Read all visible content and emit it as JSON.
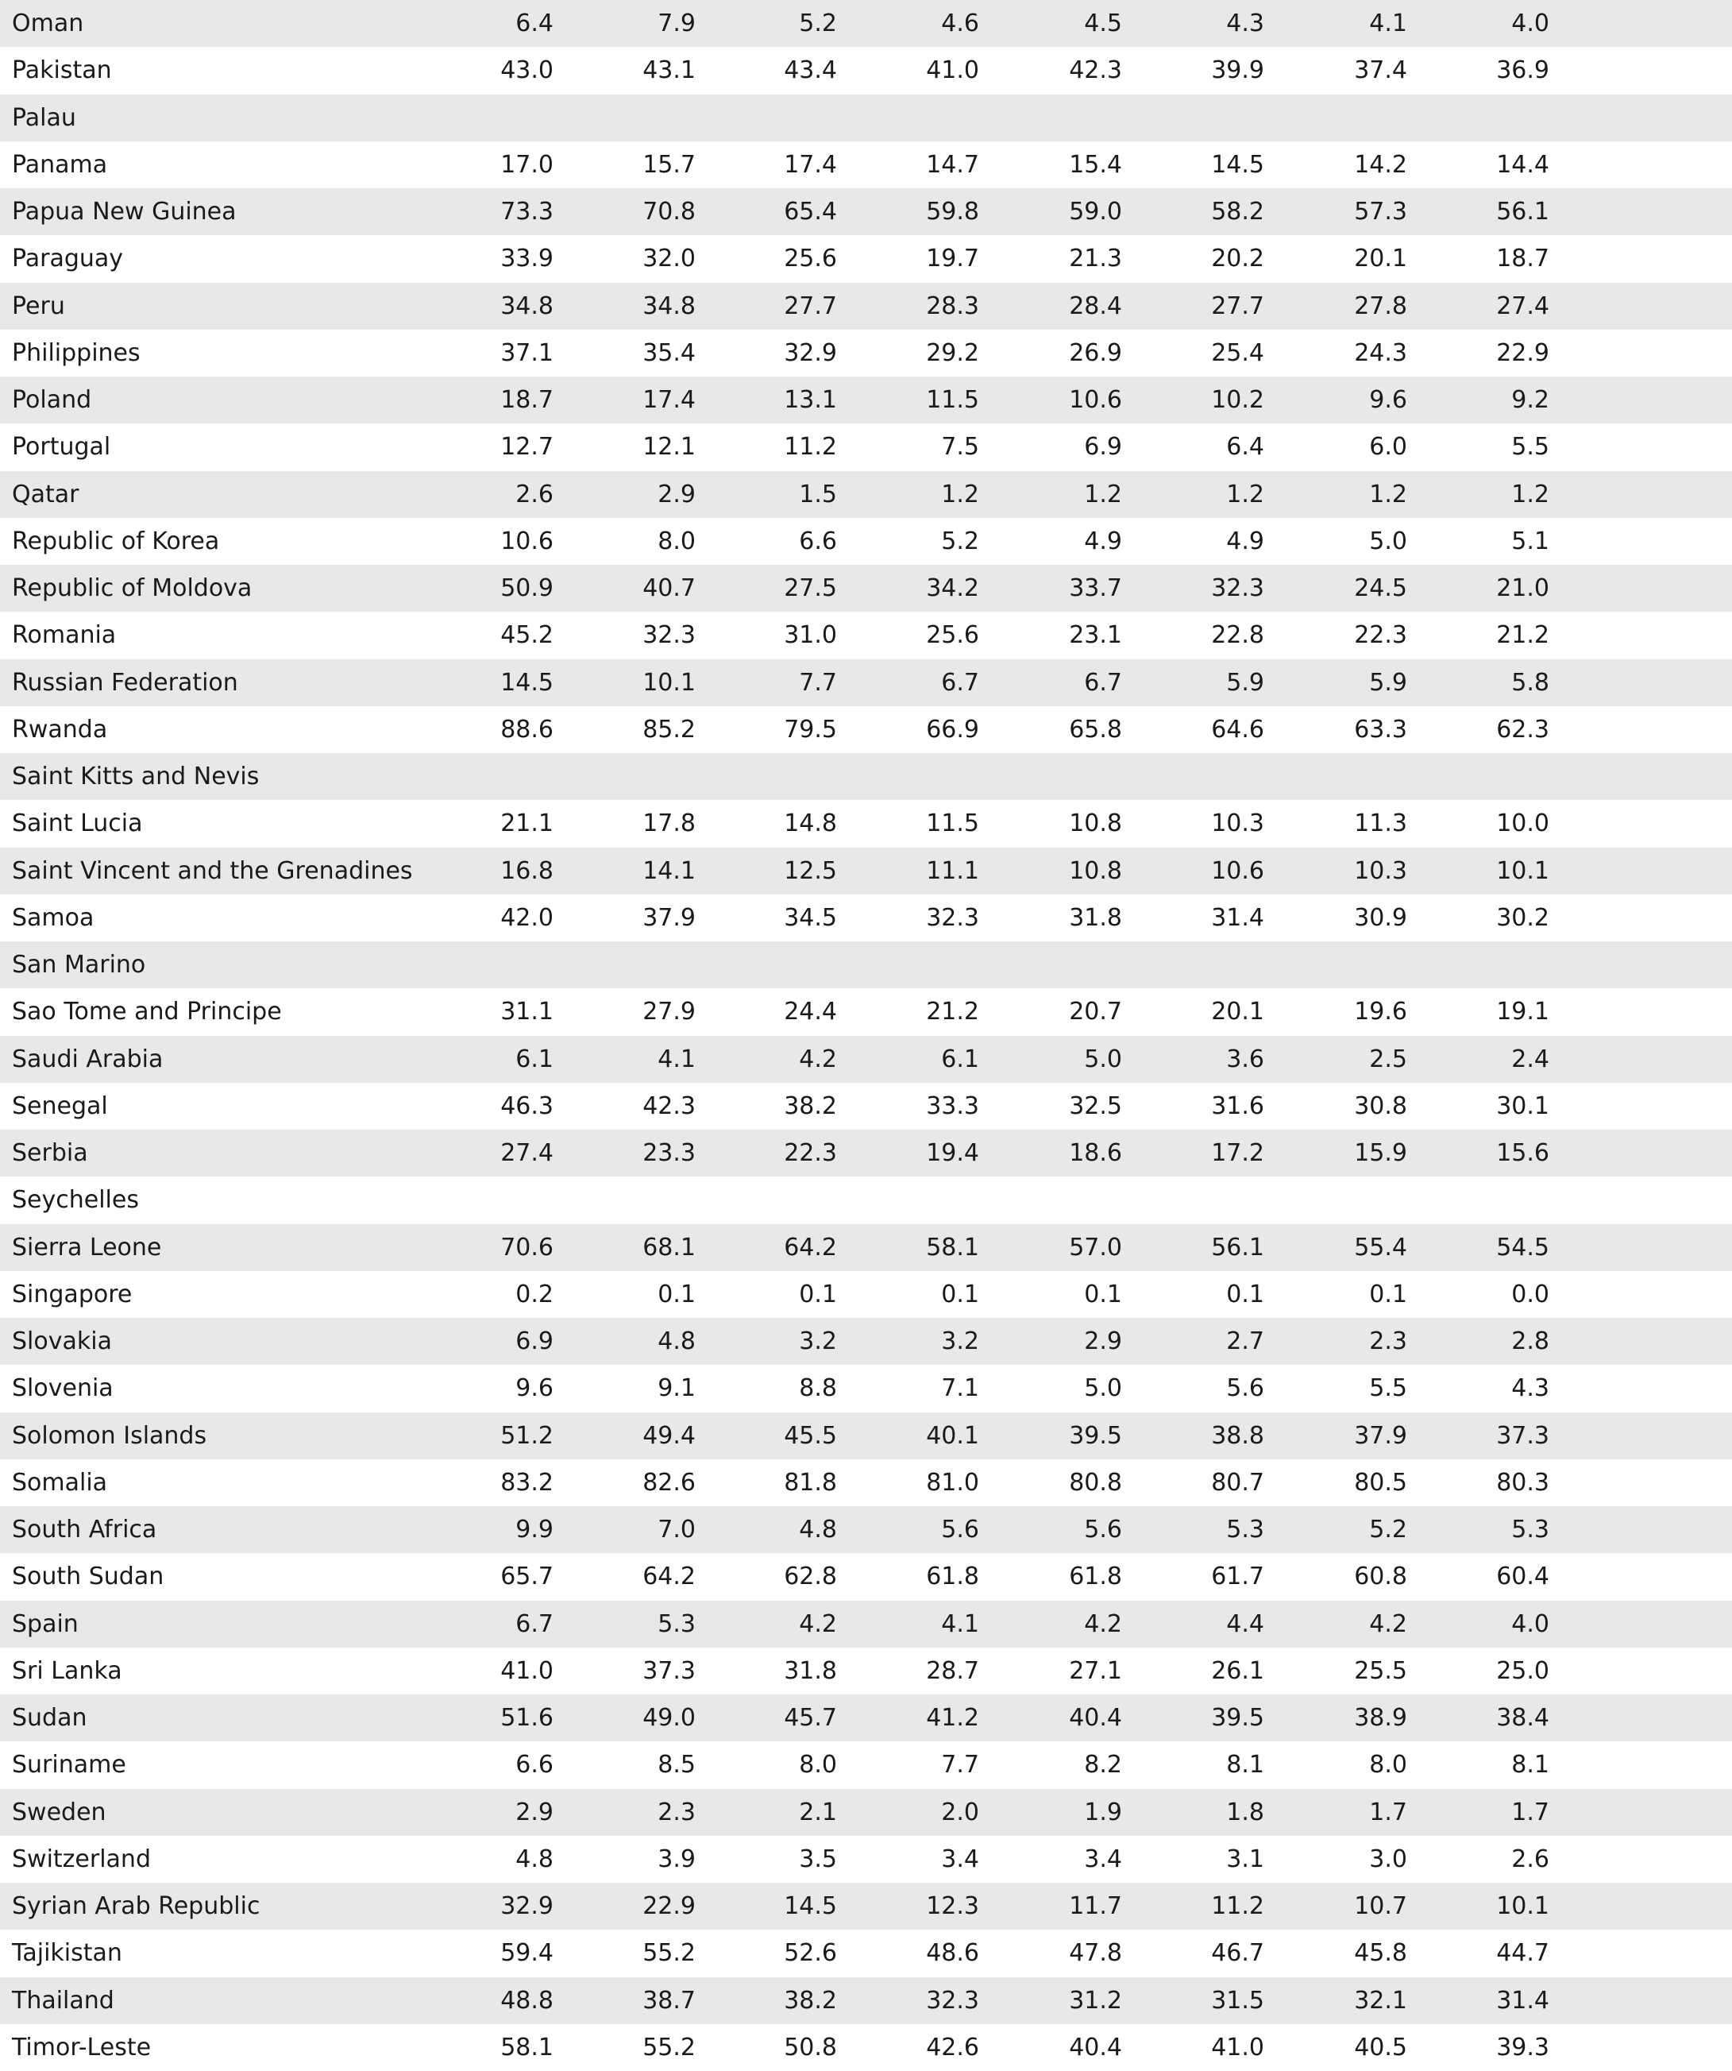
{
  "table": {
    "rows": [
      {
        "country": "Oman",
        "values": [
          "6.4",
          "7.9",
          "5.2",
          "4.6",
          "4.5",
          "4.3",
          "4.1",
          "4.0"
        ]
      },
      {
        "country": "Pakistan",
        "values": [
          "43.0",
          "43.1",
          "43.4",
          "41.0",
          "42.3",
          "39.9",
          "37.4",
          "36.9"
        ]
      },
      {
        "country": "Palau"
      },
      {
        "country": "Panama",
        "values": [
          "17.0",
          "15.7",
          "17.4",
          "14.7",
          "15.4",
          "14.5",
          "14.2",
          "14.4"
        ]
      },
      {
        "country": "Papua New Guinea",
        "values": [
          "73.3",
          "70.8",
          "65.4",
          "59.8",
          "59.0",
          "58.2",
          "57.3",
          "56.1"
        ]
      },
      {
        "country": "Paraguay",
        "values": [
          "33.9",
          "32.0",
          "25.6",
          "19.7",
          "21.3",
          "20.2",
          "20.1",
          "18.7"
        ]
      },
      {
        "country": "Peru",
        "values": [
          "34.8",
          "34.8",
          "27.7",
          "28.3",
          "28.4",
          "27.7",
          "27.8",
          "27.4"
        ]
      },
      {
        "country": "Philippines",
        "values": [
          "37.1",
          "35.4",
          "32.9",
          "29.2",
          "26.9",
          "25.4",
          "24.3",
          "22.9"
        ]
      },
      {
        "country": "Poland",
        "values": [
          "18.7",
          "17.4",
          "13.1",
          "11.5",
          "10.6",
          "10.2",
          "9.6",
          "9.2"
        ]
      },
      {
        "country": "Portugal",
        "values": [
          "12.7",
          "12.1",
          "11.2",
          "7.5",
          "6.9",
          "6.4",
          "6.0",
          "5.5"
        ]
      },
      {
        "country": "Qatar",
        "values": [
          "2.6",
          "2.9",
          "1.5",
          "1.2",
          "1.2",
          "1.2",
          "1.2",
          "1.2"
        ]
      },
      {
        "country": "Republic of Korea",
        "values": [
          "10.6",
          "8.0",
          "6.6",
          "5.2",
          "4.9",
          "4.9",
          "5.0",
          "5.1"
        ]
      },
      {
        "country": "Republic of Moldova",
        "values": [
          "50.9",
          "40.7",
          "27.5",
          "34.2",
          "33.7",
          "32.3",
          "24.5",
          "21.0"
        ]
      },
      {
        "country": "Romania",
        "values": [
          "45.2",
          "32.3",
          "31.0",
          "25.6",
          "23.1",
          "22.8",
          "22.3",
          "21.2"
        ]
      },
      {
        "country": "Russian Federation",
        "values": [
          "14.5",
          "10.1",
          "7.7",
          "6.7",
          "6.7",
          "5.9",
          "5.9",
          "5.8"
        ]
      },
      {
        "country": "Rwanda",
        "values": [
          "88.6",
          "85.2",
          "79.5",
          "66.9",
          "65.8",
          "64.6",
          "63.3",
          "62.3"
        ]
      },
      {
        "country": "Saint Kitts and Nevis"
      },
      {
        "country": "Saint Lucia",
        "values": [
          "21.1",
          "17.8",
          "14.8",
          "11.5",
          "10.8",
          "10.3",
          "11.3",
          "10.0"
        ]
      },
      {
        "country": "Saint Vincent and the Grenadines",
        "values": [
          "16.8",
          "14.1",
          "12.5",
          "11.1",
          "10.8",
          "10.6",
          "10.3",
          "10.1"
        ]
      },
      {
        "country": "Samoa",
        "values": [
          "42.0",
          "37.9",
          "34.5",
          "32.3",
          "31.8",
          "31.4",
          "30.9",
          "30.2"
        ]
      },
      {
        "country": "San Marino"
      },
      {
        "country": "Sao Tome and Principe",
        "values": [
          "31.1",
          "27.9",
          "24.4",
          "21.2",
          "20.7",
          "20.1",
          "19.6",
          "19.1"
        ]
      },
      {
        "country": "Saudi Arabia",
        "values": [
          "6.1",
          "4.1",
          "4.2",
          "6.1",
          "5.0",
          "3.6",
          "2.5",
          "2.4"
        ]
      },
      {
        "country": "Senegal",
        "values": [
          "46.3",
          "42.3",
          "38.2",
          "33.3",
          "32.5",
          "31.6",
          "30.8",
          "30.1"
        ]
      },
      {
        "country": "Serbia",
        "values": [
          "27.4",
          "23.3",
          "22.3",
          "19.4",
          "18.6",
          "17.2",
          "15.9",
          "15.6"
        ]
      },
      {
        "country": "Seychelles"
      },
      {
        "country": "Sierra Leone",
        "values": [
          "70.6",
          "68.1",
          "64.2",
          "58.1",
          "57.0",
          "56.1",
          "55.4",
          "54.5"
        ]
      },
      {
        "country": "Singapore",
        "values": [
          "0.2",
          "0.1",
          "0.1",
          "0.1",
          "0.1",
          "0.1",
          "0.1",
          "0.0"
        ]
      },
      {
        "country": "Slovakia",
        "values": [
          "6.9",
          "4.8",
          "3.2",
          "3.2",
          "2.9",
          "2.7",
          "2.3",
          "2.8"
        ]
      },
      {
        "country": "Slovenia",
        "values": [
          "9.6",
          "9.1",
          "8.8",
          "7.1",
          "5.0",
          "5.6",
          "5.5",
          "4.3"
        ]
      },
      {
        "country": "Solomon Islands",
        "values": [
          "51.2",
          "49.4",
          "45.5",
          "40.1",
          "39.5",
          "38.8",
          "37.9",
          "37.3"
        ]
      },
      {
        "country": "Somalia",
        "values": [
          "83.2",
          "82.6",
          "81.8",
          "81.0",
          "80.8",
          "80.7",
          "80.5",
          "80.3"
        ]
      },
      {
        "country": "South Africa",
        "values": [
          "9.9",
          "7.0",
          "4.8",
          "5.6",
          "5.6",
          "5.3",
          "5.2",
          "5.3"
        ]
      },
      {
        "country": "South Sudan",
        "values": [
          "65.7",
          "64.2",
          "62.8",
          "61.8",
          "61.8",
          "61.7",
          "60.8",
          "60.4"
        ]
      },
      {
        "country": "Spain",
        "values": [
          "6.7",
          "5.3",
          "4.2",
          "4.1",
          "4.2",
          "4.4",
          "4.2",
          "4.0"
        ]
      },
      {
        "country": "Sri Lanka",
        "values": [
          "41.0",
          "37.3",
          "31.8",
          "28.7",
          "27.1",
          "26.1",
          "25.5",
          "25.0"
        ]
      },
      {
        "country": "Sudan",
        "values": [
          "51.6",
          "49.0",
          "45.7",
          "41.2",
          "40.4",
          "39.5",
          "38.9",
          "38.4"
        ]
      },
      {
        "country": "Suriname",
        "values": [
          "6.6",
          "8.5",
          "8.0",
          "7.7",
          "8.2",
          "8.1",
          "8.0",
          "8.1"
        ]
      },
      {
        "country": "Sweden",
        "values": [
          "2.9",
          "2.3",
          "2.1",
          "2.0",
          "1.9",
          "1.8",
          "1.7",
          "1.7"
        ]
      },
      {
        "country": "Switzerland",
        "values": [
          "4.8",
          "3.9",
          "3.5",
          "3.4",
          "3.4",
          "3.1",
          "3.0",
          "2.6"
        ]
      },
      {
        "country": "Syrian Arab Republic",
        "values": [
          "32.9",
          "22.9",
          "14.5",
          "12.3",
          "11.7",
          "11.2",
          "10.7",
          "10.1"
        ]
      },
      {
        "country": "Tajikistan",
        "values": [
          "59.4",
          "55.2",
          "52.6",
          "48.6",
          "47.8",
          "46.7",
          "45.8",
          "44.7"
        ]
      },
      {
        "country": "Thailand",
        "values": [
          "48.8",
          "38.7",
          "38.2",
          "32.3",
          "31.2",
          "31.5",
          "32.1",
          "31.4"
        ]
      },
      {
        "country": "Timor-Leste",
        "values": [
          "58.1",
          "55.2",
          "50.8",
          "42.6",
          "40.4",
          "41.0",
          "40.5",
          "39.3"
        ]
      }
    ]
  }
}
